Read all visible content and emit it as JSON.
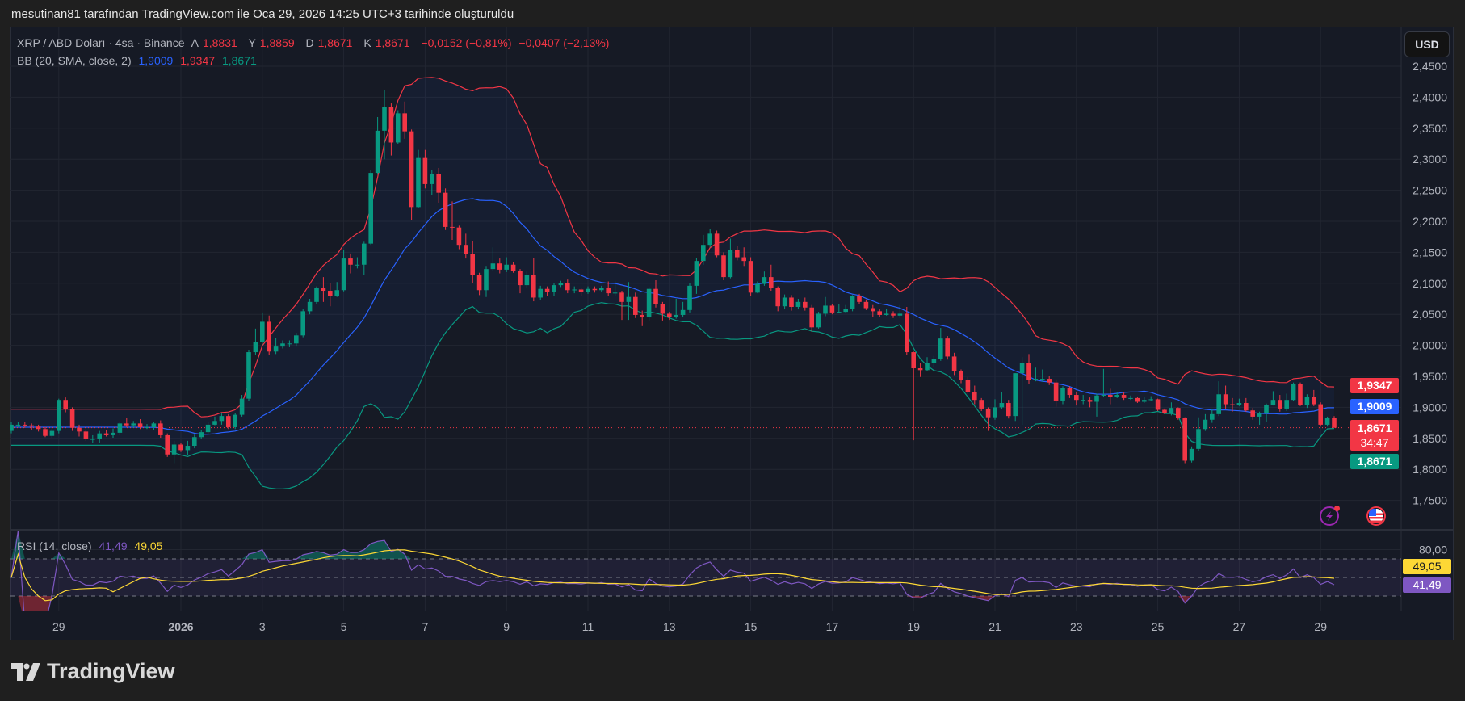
{
  "caption": "mesutinan81 tarafından TradingView.com ile Oca 29, 2026 14:25 UTC+3 tarihinde oluşturuldu",
  "legend": {
    "symbol": "XRP / ABD Doları · 4sa · Binance",
    "open_label": "A",
    "open": "1,8831",
    "high_label": "Y",
    "high": "1,8859",
    "low_label": "D",
    "low": "1,8671",
    "close_label": "K",
    "close": "1,8671",
    "change": "−0,0152 (−0,81%)",
    "change2": "−0,0407 (−2,13%)",
    "bb_title": "BB (20, SMA, close, 2)",
    "bb_basis": "1,9009",
    "bb_upper": "1,9347",
    "bb_lower": "1,8671",
    "rsi_title": "RSI (14, close)",
    "rsi_value": "41,49",
    "rsi_ma": "49,05"
  },
  "currency_button": "USD",
  "price_tags": {
    "bb_upper": "1,9347",
    "bb_basis": "1,9009",
    "last": "1,8671",
    "countdown": "34:47",
    "bb_lower": "1,8671",
    "rsi_ma": "49,05",
    "rsi": "41,49"
  },
  "icons": {
    "events": "lightning-icon",
    "economic": "us-flag-icon"
  },
  "colors": {
    "up": "#089981",
    "down": "#f23645",
    "bb_upper": "#f23645",
    "bb_basis": "#2962ff",
    "bb_lower": "#089981",
    "rsi": "#7e57c2",
    "rsi_ma": "#fdd835"
  },
  "brand": "TradingView",
  "chart_data": {
    "type": "candlestick",
    "interval": "4sa",
    "price_axis": {
      "ylim": [
        1.7,
        2.514
      ],
      "ticks": [
        "2,4500",
        "2,4000",
        "2,3500",
        "2,3000",
        "2,2500",
        "2,2000",
        "2,1500",
        "2,1000",
        "2,0500",
        "2,0000",
        "1,9500",
        "1,9000",
        "1,8500",
        "1,8000",
        "1,7500"
      ]
    },
    "rsi_axis": {
      "ticks": [
        "80,00"
      ],
      "bands": [
        70,
        50,
        30
      ]
    },
    "time_axis": [
      "29",
      "2026",
      "3",
      "5",
      "7",
      "9",
      "11",
      "13",
      "15",
      "17",
      "19",
      "21",
      "23",
      "25",
      "27",
      "29"
    ],
    "last_price": 1.8671,
    "candles_ohlc": [
      [
        1.862,
        1.877,
        1.858,
        1.872
      ],
      [
        1.872,
        1.876,
        1.868,
        1.872
      ],
      [
        1.872,
        1.877,
        1.867,
        1.871
      ],
      [
        1.871,
        1.874,
        1.864,
        1.869
      ],
      [
        1.869,
        1.872,
        1.861,
        1.865
      ],
      [
        1.865,
        1.868,
        1.852,
        1.854
      ],
      [
        1.854,
        1.866,
        1.851,
        1.862
      ],
      [
        1.862,
        1.914,
        1.858,
        1.912
      ],
      [
        1.912,
        1.916,
        1.892,
        1.897
      ],
      [
        1.897,
        1.9,
        1.862,
        1.867
      ],
      [
        1.867,
        1.872,
        1.853,
        1.861
      ],
      [
        1.861,
        1.864,
        1.846,
        1.849
      ],
      [
        1.849,
        1.855,
        1.843,
        1.849
      ],
      [
        1.849,
        1.862,
        1.843,
        1.858
      ],
      [
        1.858,
        1.864,
        1.853,
        1.855
      ],
      [
        1.855,
        1.866,
        1.851,
        1.859
      ],
      [
        1.859,
        1.877,
        1.855,
        1.874
      ],
      [
        1.874,
        1.883,
        1.868,
        1.871
      ],
      [
        1.871,
        1.878,
        1.867,
        1.874
      ],
      [
        1.874,
        1.881,
        1.865,
        1.868
      ],
      [
        1.868,
        1.873,
        1.865,
        1.868
      ],
      [
        1.868,
        1.877,
        1.864,
        1.874
      ],
      [
        1.874,
        1.879,
        1.851,
        1.855
      ],
      [
        1.855,
        1.858,
        1.82,
        1.824
      ],
      [
        1.824,
        1.846,
        1.81,
        1.84
      ],
      [
        1.84,
        1.843,
        1.828,
        1.831
      ],
      [
        1.831,
        1.846,
        1.823,
        1.838
      ],
      [
        1.838,
        1.856,
        1.834,
        1.852
      ],
      [
        1.852,
        1.864,
        1.849,
        1.86
      ],
      [
        1.86,
        1.876,
        1.856,
        1.872
      ],
      [
        1.872,
        1.885,
        1.871,
        1.878
      ],
      [
        1.878,
        1.89,
        1.872,
        1.886
      ],
      [
        1.886,
        1.889,
        1.865,
        1.868
      ],
      [
        1.868,
        1.891,
        1.865,
        1.888
      ],
      [
        1.888,
        1.92,
        1.885,
        1.914
      ],
      [
        1.914,
        1.993,
        1.91,
        1.989
      ],
      [
        1.989,
        2.027,
        1.985,
        2.005
      ],
      [
        2.005,
        2.053,
        2.0,
        2.038
      ],
      [
        2.038,
        2.048,
        1.985,
        1.99
      ],
      [
        1.99,
        2.012,
        1.986,
        1.998
      ],
      [
        1.998,
        2.008,
        1.995,
        2.003
      ],
      [
        2.003,
        2.008,
        1.997,
        2.003
      ],
      [
        2.003,
        2.02,
        1.998,
        2.016
      ],
      [
        2.016,
        2.058,
        2.013,
        2.055
      ],
      [
        2.055,
        2.075,
        2.05,
        2.07
      ],
      [
        2.07,
        2.095,
        2.066,
        2.092
      ],
      [
        2.092,
        2.11,
        2.07,
        2.088
      ],
      [
        2.088,
        2.101,
        2.063,
        2.08
      ],
      [
        2.08,
        2.102,
        2.078,
        2.089
      ],
      [
        2.089,
        2.154,
        2.087,
        2.14
      ],
      [
        2.14,
        2.148,
        2.116,
        2.13
      ],
      [
        2.13,
        2.142,
        2.124,
        2.13
      ],
      [
        2.13,
        2.167,
        2.113,
        2.164
      ],
      [
        2.164,
        2.282,
        2.162,
        2.278
      ],
      [
        2.278,
        2.368,
        2.275,
        2.346
      ],
      [
        2.346,
        2.412,
        2.3,
        2.384
      ],
      [
        2.384,
        2.39,
        2.306,
        2.327
      ],
      [
        2.327,
        2.379,
        2.325,
        2.374
      ],
      [
        2.374,
        2.393,
        2.333,
        2.345
      ],
      [
        2.345,
        2.348,
        2.202,
        2.223
      ],
      [
        2.223,
        2.315,
        2.221,
        2.302
      ],
      [
        2.302,
        2.315,
        2.253,
        2.26
      ],
      [
        2.26,
        2.283,
        2.242,
        2.276
      ],
      [
        2.276,
        2.286,
        2.23,
        2.246
      ],
      [
        2.246,
        2.253,
        2.186,
        2.191
      ],
      [
        2.191,
        2.232,
        2.17,
        2.19
      ],
      [
        2.19,
        2.193,
        2.155,
        2.162
      ],
      [
        2.162,
        2.18,
        2.14,
        2.147
      ],
      [
        2.147,
        2.168,
        2.1,
        2.113
      ],
      [
        2.113,
        2.117,
        2.081,
        2.089
      ],
      [
        2.089,
        2.128,
        2.078,
        2.123
      ],
      [
        2.123,
        2.158,
        2.12,
        2.132
      ],
      [
        2.132,
        2.14,
        2.116,
        2.122
      ],
      [
        2.122,
        2.142,
        2.118,
        2.13
      ],
      [
        2.13,
        2.134,
        2.117,
        2.12
      ],
      [
        2.12,
        2.123,
        2.084,
        2.097
      ],
      [
        2.097,
        2.119,
        2.092,
        2.114
      ],
      [
        2.114,
        2.141,
        2.071,
        2.077
      ],
      [
        2.077,
        2.096,
        2.073,
        2.091
      ],
      [
        2.091,
        2.095,
        2.08,
        2.086
      ],
      [
        2.086,
        2.101,
        2.08,
        2.097
      ],
      [
        2.097,
        2.104,
        2.094,
        2.1
      ],
      [
        2.1,
        2.106,
        2.084,
        2.089
      ],
      [
        2.089,
        2.095,
        2.084,
        2.09
      ],
      [
        2.09,
        2.093,
        2.08,
        2.086
      ],
      [
        2.086,
        2.095,
        2.083,
        2.091
      ],
      [
        2.091,
        2.095,
        2.085,
        2.089
      ],
      [
        2.089,
        2.096,
        2.086,
        2.092
      ],
      [
        2.092,
        2.103,
        2.08,
        2.084
      ],
      [
        2.084,
        2.103,
        2.08,
        2.085
      ],
      [
        2.085,
        2.088,
        2.041,
        2.07
      ],
      [
        2.07,
        2.102,
        2.041,
        2.078
      ],
      [
        2.078,
        2.085,
        2.044,
        2.049
      ],
      [
        2.049,
        2.056,
        2.031,
        2.045
      ],
      [
        2.045,
        2.094,
        2.04,
        2.091
      ],
      [
        2.091,
        2.105,
        2.061,
        2.066
      ],
      [
        2.066,
        2.07,
        2.04,
        2.051
      ],
      [
        2.051,
        2.054,
        2.041,
        2.046
      ],
      [
        2.046,
        2.075,
        2.043,
        2.049
      ],
      [
        2.049,
        2.07,
        2.045,
        2.057
      ],
      [
        2.057,
        2.1,
        2.053,
        2.096
      ],
      [
        2.096,
        2.141,
        2.083,
        2.136
      ],
      [
        2.136,
        2.178,
        2.13,
        2.162
      ],
      [
        2.162,
        2.188,
        2.158,
        2.18
      ],
      [
        2.18,
        2.185,
        2.142,
        2.145
      ],
      [
        2.145,
        2.15,
        2.105,
        2.11
      ],
      [
        2.11,
        2.172,
        2.108,
        2.154
      ],
      [
        2.154,
        2.16,
        2.137,
        2.142
      ],
      [
        2.142,
        2.158,
        2.128,
        2.136
      ],
      [
        2.136,
        2.142,
        2.08,
        2.085
      ],
      [
        2.085,
        2.103,
        2.084,
        2.099
      ],
      [
        2.099,
        2.119,
        2.096,
        2.11
      ],
      [
        2.11,
        2.13,
        2.088,
        2.092
      ],
      [
        2.092,
        2.095,
        2.055,
        2.063
      ],
      [
        2.063,
        2.082,
        2.058,
        2.077
      ],
      [
        2.077,
        2.081,
        2.056,
        2.062
      ],
      [
        2.062,
        2.075,
        2.058,
        2.07
      ],
      [
        2.07,
        2.077,
        2.056,
        2.061
      ],
      [
        2.061,
        2.065,
        2.022,
        2.029
      ],
      [
        2.029,
        2.054,
        2.027,
        2.051
      ],
      [
        2.051,
        2.078,
        2.047,
        2.064
      ],
      [
        2.064,
        2.067,
        2.05,
        2.053
      ],
      [
        2.053,
        2.066,
        2.052,
        2.054
      ],
      [
        2.054,
        2.065,
        2.053,
        2.059
      ],
      [
        2.059,
        2.081,
        2.055,
        2.079
      ],
      [
        2.079,
        2.083,
        2.066,
        2.07
      ],
      [
        2.07,
        2.074,
        2.057,
        2.06
      ],
      [
        2.06,
        2.065,
        2.046,
        2.055
      ],
      [
        2.055,
        2.058,
        2.046,
        2.049
      ],
      [
        2.049,
        2.059,
        2.048,
        2.051
      ],
      [
        2.051,
        2.055,
        2.044,
        2.048
      ],
      [
        2.048,
        2.065,
        2.044,
        2.051
      ],
      [
        2.051,
        2.062,
        1.985,
        1.989
      ],
      [
        1.989,
        1.99,
        1.847,
        1.963
      ],
      [
        1.963,
        1.971,
        1.949,
        1.96
      ],
      [
        1.96,
        1.981,
        1.958,
        1.971
      ],
      [
        1.971,
        1.983,
        1.965,
        1.978
      ],
      [
        1.978,
        2.028,
        1.975,
        2.011
      ],
      [
        2.011,
        2.015,
        1.977,
        1.982
      ],
      [
        1.982,
        1.988,
        1.952,
        1.958
      ],
      [
        1.958,
        1.961,
        1.939,
        1.944
      ],
      [
        1.944,
        1.949,
        1.921,
        1.925
      ],
      [
        1.925,
        1.935,
        1.905,
        1.912
      ],
      [
        1.912,
        1.915,
        1.894,
        1.898
      ],
      [
        1.898,
        1.9,
        1.862,
        1.884
      ],
      [
        1.884,
        1.913,
        1.88,
        1.9
      ],
      [
        1.9,
        1.924,
        1.897,
        1.907
      ],
      [
        1.907,
        1.912,
        1.882,
        1.886
      ],
      [
        1.886,
        1.955,
        1.878,
        1.955
      ],
      [
        1.955,
        1.981,
        1.872,
        1.971
      ],
      [
        1.971,
        1.986,
        1.937,
        1.944
      ],
      [
        1.944,
        1.964,
        1.942,
        1.946
      ],
      [
        1.946,
        1.961,
        1.941,
        1.946
      ],
      [
        1.946,
        1.95,
        1.936,
        1.94
      ],
      [
        1.94,
        1.945,
        1.901,
        1.911
      ],
      [
        1.911,
        1.934,
        1.905,
        1.931
      ],
      [
        1.931,
        1.934,
        1.915,
        1.92
      ],
      [
        1.92,
        1.924,
        1.903,
        1.912
      ],
      [
        1.912,
        1.92,
        1.905,
        1.912
      ],
      [
        1.912,
        1.916,
        1.9,
        1.909
      ],
      [
        1.909,
        1.922,
        1.885,
        1.919
      ],
      [
        1.919,
        1.962,
        1.917,
        1.92
      ],
      [
        1.92,
        1.93,
        1.905,
        1.917
      ],
      [
        1.917,
        1.925,
        1.915,
        1.92
      ],
      [
        1.92,
        1.924,
        1.912,
        1.915
      ],
      [
        1.915,
        1.919,
        1.912,
        1.915
      ],
      [
        1.915,
        1.917,
        1.907,
        1.909
      ],
      [
        1.909,
        1.916,
        1.907,
        1.912
      ],
      [
        1.912,
        1.918,
        1.91,
        1.913
      ],
      [
        1.913,
        1.914,
        1.894,
        1.896
      ],
      [
        1.896,
        1.898,
        1.889,
        1.891
      ],
      [
        1.891,
        1.908,
        1.887,
        1.899
      ],
      [
        1.899,
        1.9,
        1.88,
        1.883
      ],
      [
        1.883,
        1.884,
        1.81,
        1.814
      ],
      [
        1.814,
        1.837,
        1.811,
        1.833
      ],
      [
        1.833,
        1.884,
        1.83,
        1.865
      ],
      [
        1.865,
        1.889,
        1.862,
        1.88
      ],
      [
        1.88,
        1.897,
        1.875,
        1.889
      ],
      [
        1.889,
        1.942,
        1.886,
        1.921
      ],
      [
        1.921,
        1.935,
        1.898,
        1.905
      ],
      [
        1.905,
        1.915,
        1.893,
        1.904
      ],
      [
        1.904,
        1.914,
        1.902,
        1.907
      ],
      [
        1.907,
        1.915,
        1.893,
        1.895
      ],
      [
        1.895,
        1.899,
        1.88,
        1.885
      ],
      [
        1.885,
        1.893,
        1.872,
        1.89
      ],
      [
        1.89,
        1.906,
        1.876,
        1.904
      ],
      [
        1.904,
        1.926,
        1.903,
        1.912
      ],
      [
        1.912,
        1.92,
        1.893,
        1.898
      ],
      [
        1.898,
        1.922,
        1.894,
        1.912
      ],
      [
        1.912,
        1.94,
        1.91,
        1.938
      ],
      [
        1.938,
        1.94,
        1.902,
        1.904
      ],
      [
        1.904,
        1.921,
        1.899,
        1.917
      ],
      [
        1.917,
        1.928,
        1.902,
        1.905
      ],
      [
        1.905,
        1.908,
        1.869,
        1.872
      ],
      [
        1.872,
        1.885,
        1.869,
        1.883
      ],
      [
        1.8831,
        1.8859,
        1.8671,
        1.8671
      ]
    ]
  }
}
